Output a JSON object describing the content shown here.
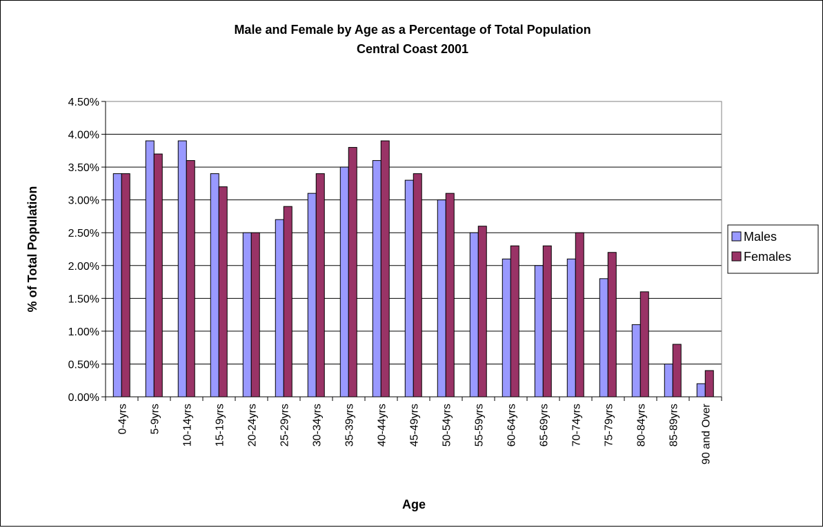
{
  "chart_data": {
    "type": "bar",
    "title": "Male and Female by Age as a Percentage of Total Population",
    "subtitle": "Central Coast 2001",
    "xlabel": "Age",
    "ylabel": "% of Total Population",
    "categories": [
      "0-4yrs",
      "5-9yrs",
      "10-14yrs",
      "15-19yrs",
      "20-24yrs",
      "25-29yrs",
      "30-34yrs",
      "35-39yrs",
      "40-44yrs",
      "45-49yrs",
      "50-54yrs",
      "55-59yrs",
      "60-64yrs",
      "65-69yrs",
      "70-74yrs",
      "75-79yrs",
      "80-84yrs",
      "85-89yrs",
      "90 and Over"
    ],
    "series": [
      {
        "name": "Males",
        "color": "#9999ff",
        "values": [
          3.4,
          3.9,
          3.9,
          3.4,
          2.5,
          2.7,
          3.1,
          3.5,
          3.6,
          3.3,
          3.0,
          2.5,
          2.1,
          2.0,
          2.1,
          1.8,
          1.1,
          0.5,
          0.2
        ]
      },
      {
        "name": "Females",
        "color": "#993366",
        "values": [
          3.4,
          3.7,
          3.6,
          3.2,
          2.5,
          2.9,
          3.4,
          3.8,
          3.9,
          3.4,
          3.1,
          2.6,
          2.3,
          2.3,
          2.5,
          2.2,
          1.6,
          0.8,
          0.4
        ]
      }
    ],
    "ylim": [
      0,
      4.5
    ],
    "yticks": [
      "0.00%",
      "0.50%",
      "1.00%",
      "1.50%",
      "2.00%",
      "2.50%",
      "3.00%",
      "3.50%",
      "4.00%",
      "4.50%"
    ],
    "grid": true,
    "legend": "right"
  }
}
